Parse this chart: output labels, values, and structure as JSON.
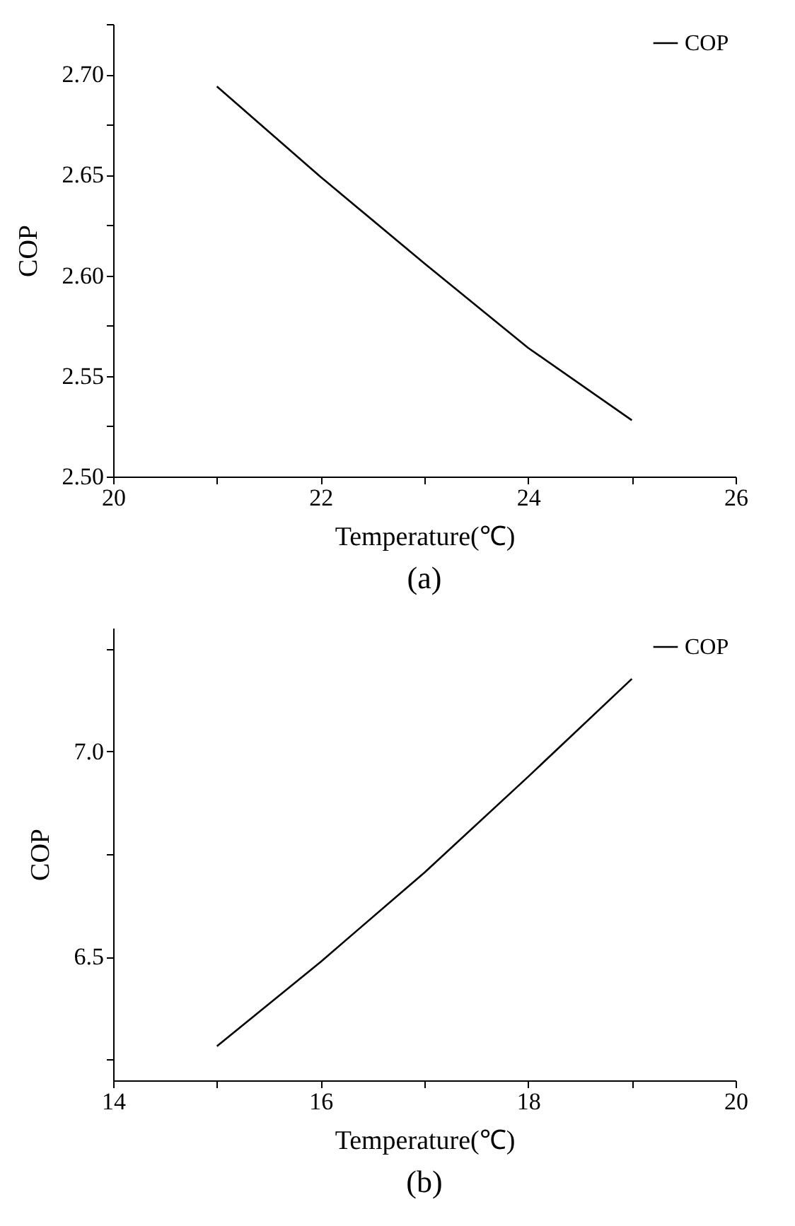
{
  "chart_data": [
    {
      "type": "line",
      "title": "(a)",
      "xlabel": "Temperature(℃)",
      "ylabel": "COP",
      "x": [
        21,
        22,
        23,
        24,
        25
      ],
      "series": [
        {
          "name": "COP",
          "color": "#000000",
          "values": [
            2.694,
            2.649,
            2.606,
            2.564,
            2.528
          ]
        }
      ],
      "xlim": [
        20,
        26
      ],
      "xticks": [
        20,
        {
          "value": 21,
          "label": null
        },
        22,
        {
          "value": 23,
          "label": null
        },
        24,
        {
          "value": 25,
          "label": null
        },
        26
      ],
      "ylim": [
        2.5,
        2.725
      ],
      "yticks": [
        {
          "value": 2.5,
          "label": "2.50"
        },
        {
          "value": 2.525,
          "label": null
        },
        {
          "value": 2.55,
          "label": "2.55"
        },
        {
          "value": 2.575,
          "label": null
        },
        {
          "value": 2.6,
          "label": "2.60"
        },
        {
          "value": 2.625,
          "label": null
        },
        {
          "value": 2.65,
          "label": "2.65"
        },
        {
          "value": 2.675,
          "label": null
        },
        {
          "value": 2.7,
          "label": "2.70"
        },
        {
          "value": 2.725,
          "label": null
        }
      ],
      "grid": false,
      "legend": "top right",
      "marker": "none",
      "line_style": "solid"
    },
    {
      "type": "line",
      "title": "(b)",
      "xlabel": "Temperature(℃)",
      "ylabel": "COP",
      "x": [
        15,
        16,
        17,
        18,
        19
      ],
      "series": [
        {
          "name": "COP",
          "color": "#000000",
          "values": [
            6.283,
            6.488,
            6.705,
            6.938,
            7.176
          ]
        }
      ],
      "xlim": [
        14,
        20
      ],
      "xticks": [
        14,
        {
          "value": 15,
          "label": null
        },
        16,
        {
          "value": 17,
          "label": null
        },
        18,
        {
          "value": 19,
          "label": null
        },
        20
      ],
      "ylim": [
        6.2,
        7.3
      ],
      "yticks": [
        {
          "value": 6.25,
          "label": null
        },
        6.5,
        {
          "value": 6.75,
          "label": null
        },
        {
          "value": 7,
          "label": "7.0"
        },
        {
          "value": 7.25,
          "label": null
        }
      ],
      "grid": false,
      "legend": "top right",
      "marker": "none",
      "line_style": "solid"
    }
  ]
}
